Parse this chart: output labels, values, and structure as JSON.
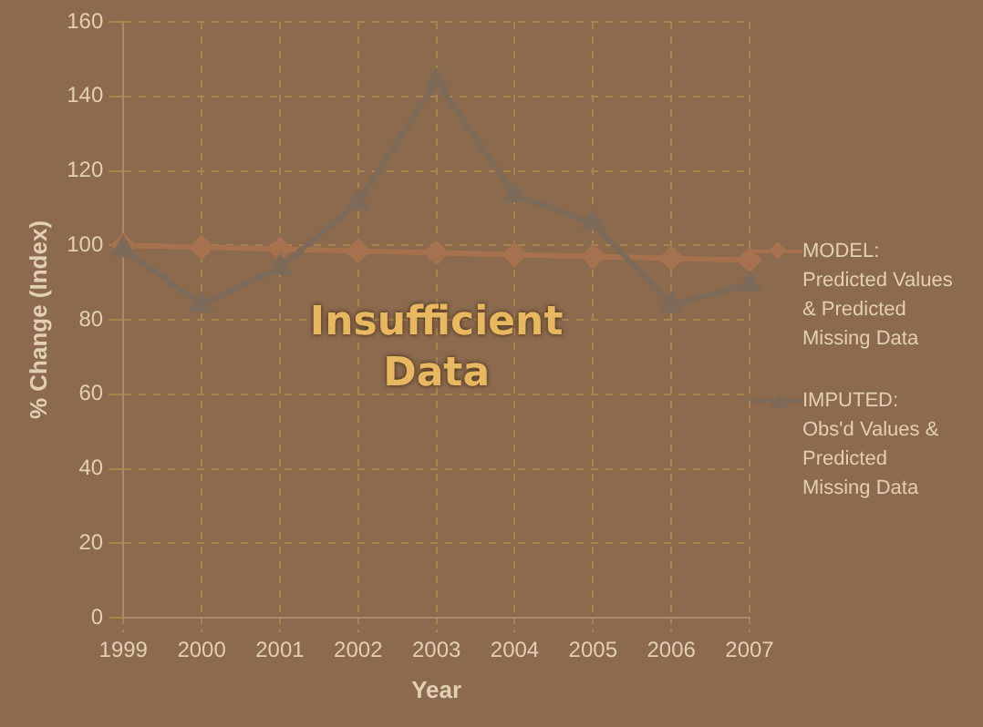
{
  "chart_data": {
    "type": "line",
    "xlabel": "Year",
    "ylabel": "% Change (Index)",
    "categories": [
      "1999",
      "2000",
      "2001",
      "2002",
      "2003",
      "2004",
      "2005",
      "2006",
      "2007"
    ],
    "series": [
      {
        "name": "MODEL: Predicted Values & Predicted Missing Data",
        "color": "#a6714f",
        "marker": "diamond",
        "values": [
          100,
          99.5,
          99,
          98.5,
          98,
          97.5,
          97,
          96.5,
          96
        ]
      },
      {
        "name": "IMPUTED: Obs'd Values & Predicted Missing Data",
        "color": "#7d6a58",
        "marker": "triangle",
        "values": [
          99,
          84,
          94,
          111.5,
          144,
          113.5,
          106,
          84,
          89.5
        ]
      }
    ],
    "ylim": [
      0,
      160
    ],
    "yticks": [
      0,
      20,
      40,
      60,
      80,
      100,
      120,
      140,
      160
    ],
    "grid": true,
    "legend": "right",
    "line_style": "solid",
    "annotations": [
      "Insufficient Data"
    ]
  }
}
